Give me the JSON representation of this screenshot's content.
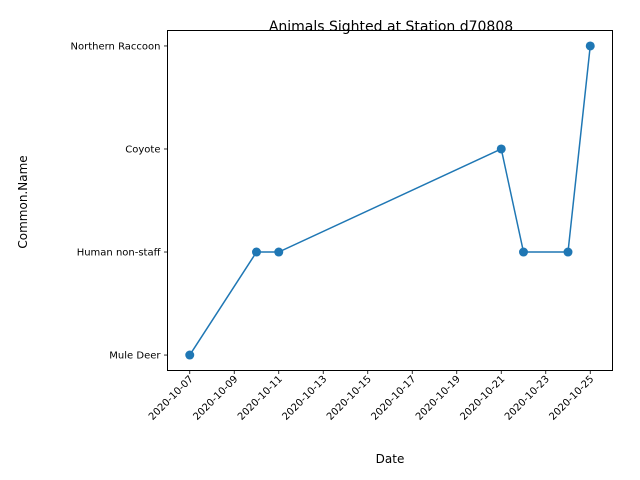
{
  "chart_data": {
    "type": "line",
    "title": "Animals Sighted at Station d70808",
    "xlabel": "Date",
    "ylabel": "Common.Name",
    "categories": [
      "Mule Deer",
      "Human non-staff",
      "Coyote",
      "Northern Raccoon"
    ],
    "x_ticks": [
      "2020-10-07",
      "2020-10-09",
      "2020-10-11",
      "2020-10-13",
      "2020-10-15",
      "2020-10-17",
      "2020-10-19",
      "2020-10-21",
      "2020-10-23",
      "2020-10-25"
    ],
    "xlim": [
      "2020-10-06",
      "2020-10-26"
    ],
    "series": [
      {
        "x": [
          "2020-10-07",
          "2020-10-10",
          "2020-10-11",
          "2020-10-21",
          "2020-10-22",
          "2020-10-24",
          "2020-10-25"
        ],
        "y": [
          "Mule Deer",
          "Human non-staff",
          "Human non-staff",
          "Coyote",
          "Human non-staff",
          "Human non-staff",
          "Northern Raccoon"
        ]
      }
    ],
    "line_color": "#1f77b4",
    "marker": "circle",
    "grid": false,
    "legend": "none"
  }
}
